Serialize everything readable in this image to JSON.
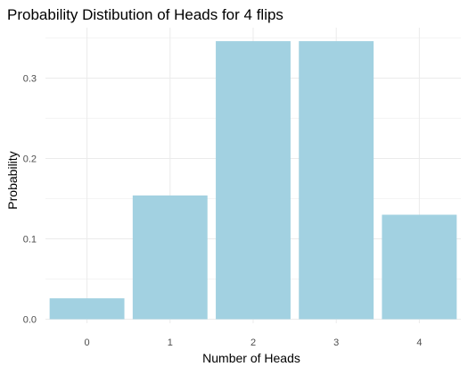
{
  "chart_data": {
    "type": "bar",
    "title": "Probability Distibution of Heads for 4 flips",
    "xlabel": "Number of Heads",
    "ylabel": "Probability",
    "categories": [
      "0",
      "1",
      "2",
      "3",
      "4"
    ],
    "values": [
      0.026,
      0.154,
      0.346,
      0.346,
      0.13
    ],
    "ylim": [
      0,
      0.36
    ],
    "yticks": [
      0.0,
      0.1,
      0.2,
      0.3
    ],
    "ytick_labels": [
      "0.0",
      "0.1",
      "0.2",
      "0.3"
    ],
    "grid": true,
    "legend": "none",
    "colors": {
      "bar": "#a2d1e1",
      "grid_major": "#ebebeb",
      "grid_minor": "#f4f4f4",
      "text": "#000000",
      "tick_text": "#4d4d4d"
    }
  }
}
